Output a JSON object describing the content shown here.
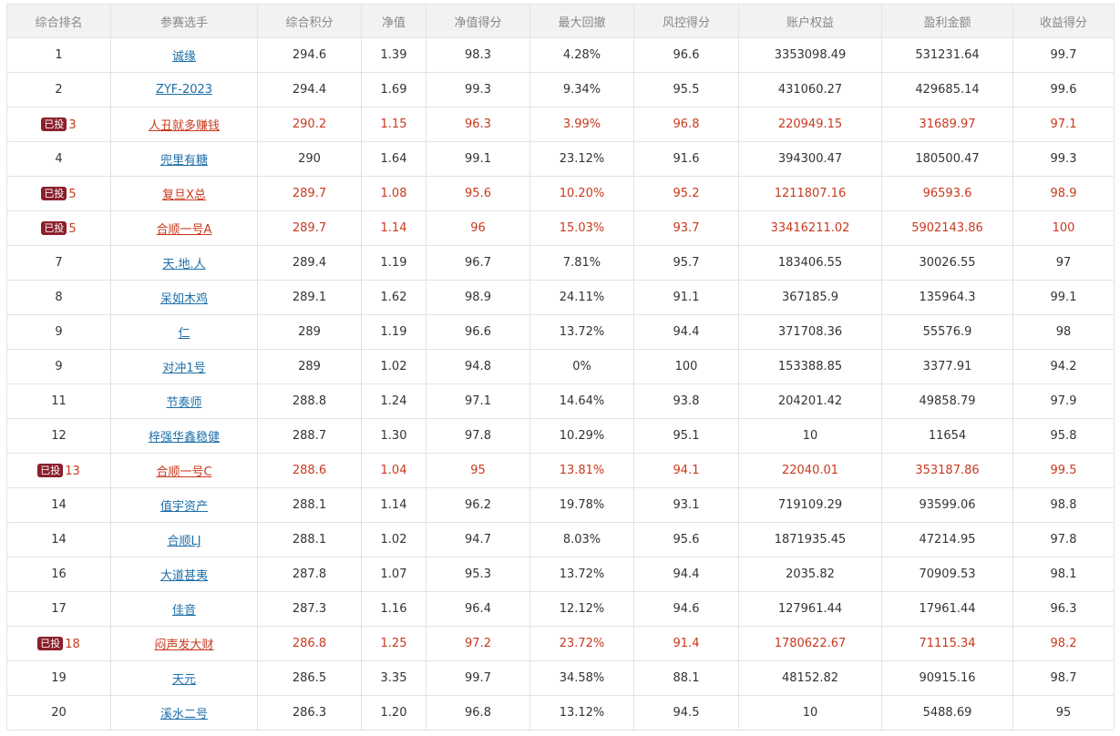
{
  "table": {
    "headers": [
      "综合排名",
      "参赛选手",
      "综合积分",
      "净值",
      "净值得分",
      "最大回撤",
      "风控得分",
      "账户权益",
      "盈利金额",
      "收益得分"
    ],
    "badge_label": "已投",
    "colors": {
      "header_bg": "#f2f2f2",
      "header_text": "#888888",
      "link": "#1d6fa8",
      "invested_text": "#c8391d",
      "badge_bg": "#8b1f2b",
      "border": "#e3e3e3"
    },
    "rows": [
      {
        "badge": "",
        "rank": "1",
        "name": "诚缘",
        "score": "294.6",
        "nav": "1.39",
        "nav_score": "98.3",
        "drawdown": "4.28%",
        "risk_score": "96.6",
        "equity": "3353098.49",
        "profit": "531231.64",
        "return_score": "99.7"
      },
      {
        "badge": "",
        "rank": "2",
        "name": "ZYF-2023",
        "score": "294.4",
        "nav": "1.69",
        "nav_score": "99.3",
        "drawdown": "9.34%",
        "risk_score": "95.5",
        "equity": "431060.27",
        "profit": "429685.14",
        "return_score": "99.6"
      },
      {
        "badge": "已投",
        "rank": "3",
        "name": "人丑就多赚钱",
        "score": "290.2",
        "nav": "1.15",
        "nav_score": "96.3",
        "drawdown": "3.99%",
        "risk_score": "96.8",
        "equity": "220949.15",
        "profit": "31689.97",
        "return_score": "97.1"
      },
      {
        "badge": "",
        "rank": "4",
        "name": "兜里有糖",
        "score": "290",
        "nav": "1.64",
        "nav_score": "99.1",
        "drawdown": "23.12%",
        "risk_score": "91.6",
        "equity": "394300.47",
        "profit": "180500.47",
        "return_score": "99.3"
      },
      {
        "badge": "已投",
        "rank": "5",
        "name": "复旦X总",
        "score": "289.7",
        "nav": "1.08",
        "nav_score": "95.6",
        "drawdown": "10.20%",
        "risk_score": "95.2",
        "equity": "1211807.16",
        "profit": "96593.6",
        "return_score": "98.9"
      },
      {
        "badge": "已投",
        "rank": "5",
        "name": "合顺一号A",
        "score": "289.7",
        "nav": "1.14",
        "nav_score": "96",
        "drawdown": "15.03%",
        "risk_score": "93.7",
        "equity": "33416211.02",
        "profit": "5902143.86",
        "return_score": "100"
      },
      {
        "badge": "",
        "rank": "7",
        "name": "天.地.人",
        "score": "289.4",
        "nav": "1.19",
        "nav_score": "96.7",
        "drawdown": "7.81%",
        "risk_score": "95.7",
        "equity": "183406.55",
        "profit": "30026.55",
        "return_score": "97"
      },
      {
        "badge": "",
        "rank": "8",
        "name": "呆如木鸡",
        "score": "289.1",
        "nav": "1.62",
        "nav_score": "98.9",
        "drawdown": "24.11%",
        "risk_score": "91.1",
        "equity": "367185.9",
        "profit": "135964.3",
        "return_score": "99.1"
      },
      {
        "badge": "",
        "rank": "9",
        "name": "仁",
        "score": "289",
        "nav": "1.19",
        "nav_score": "96.6",
        "drawdown": "13.72%",
        "risk_score": "94.4",
        "equity": "371708.36",
        "profit": "55576.9",
        "return_score": "98"
      },
      {
        "badge": "",
        "rank": "9",
        "name": "对冲1号",
        "score": "289",
        "nav": "1.02",
        "nav_score": "94.8",
        "drawdown": "0%",
        "risk_score": "100",
        "equity": "153388.85",
        "profit": "3377.91",
        "return_score": "94.2"
      },
      {
        "badge": "",
        "rank": "11",
        "name": "节奏师",
        "score": "288.8",
        "nav": "1.24",
        "nav_score": "97.1",
        "drawdown": "14.64%",
        "risk_score": "93.8",
        "equity": "204201.42",
        "profit": "49858.79",
        "return_score": "97.9"
      },
      {
        "badge": "",
        "rank": "12",
        "name": "梓强华鑫稳健",
        "score": "288.7",
        "nav": "1.30",
        "nav_score": "97.8",
        "drawdown": "10.29%",
        "risk_score": "95.1",
        "equity": "10",
        "profit": "11654",
        "return_score": "95.8"
      },
      {
        "badge": "已投",
        "rank": "13",
        "name": "合顺一号C",
        "score": "288.6",
        "nav": "1.04",
        "nav_score": "95",
        "drawdown": "13.81%",
        "risk_score": "94.1",
        "equity": "22040.01",
        "profit": "353187.86",
        "return_score": "99.5"
      },
      {
        "badge": "",
        "rank": "14",
        "name": "值宇资产",
        "score": "288.1",
        "nav": "1.14",
        "nav_score": "96.2",
        "drawdown": "19.78%",
        "risk_score": "93.1",
        "equity": "719109.29",
        "profit": "93599.06",
        "return_score": "98.8"
      },
      {
        "badge": "",
        "rank": "14",
        "name": "合顺LJ",
        "score": "288.1",
        "nav": "1.02",
        "nav_score": "94.7",
        "drawdown": "8.03%",
        "risk_score": "95.6",
        "equity": "1871935.45",
        "profit": "47214.95",
        "return_score": "97.8"
      },
      {
        "badge": "",
        "rank": "16",
        "name": "大道甚夷",
        "score": "287.8",
        "nav": "1.07",
        "nav_score": "95.3",
        "drawdown": "13.72%",
        "risk_score": "94.4",
        "equity": "2035.82",
        "profit": "70909.53",
        "return_score": "98.1"
      },
      {
        "badge": "",
        "rank": "17",
        "name": "佳音",
        "score": "287.3",
        "nav": "1.16",
        "nav_score": "96.4",
        "drawdown": "12.12%",
        "risk_score": "94.6",
        "equity": "127961.44",
        "profit": "17961.44",
        "return_score": "96.3"
      },
      {
        "badge": "已投",
        "rank": "18",
        "name": "闷声发大财",
        "score": "286.8",
        "nav": "1.25",
        "nav_score": "97.2",
        "drawdown": "23.72%",
        "risk_score": "91.4",
        "equity": "1780622.67",
        "profit": "71115.34",
        "return_score": "98.2"
      },
      {
        "badge": "",
        "rank": "19",
        "name": "天元",
        "score": "286.5",
        "nav": "3.35",
        "nav_score": "99.7",
        "drawdown": "34.58%",
        "risk_score": "88.1",
        "equity": "48152.82",
        "profit": "90915.16",
        "return_score": "98.7"
      },
      {
        "badge": "",
        "rank": "20",
        "name": "溪水二号",
        "score": "286.3",
        "nav": "1.20",
        "nav_score": "96.8",
        "drawdown": "13.12%",
        "risk_score": "94.5",
        "equity": "10",
        "profit": "5488.69",
        "return_score": "95"
      }
    ]
  }
}
